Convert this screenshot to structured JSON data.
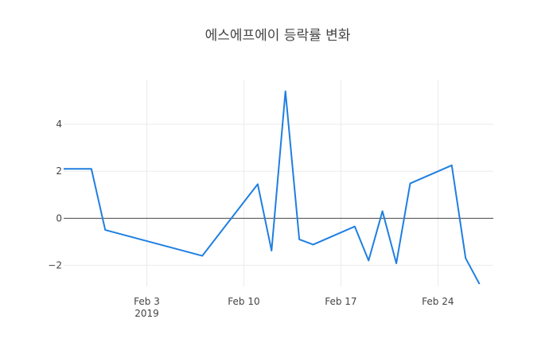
{
  "chart_data": {
    "type": "line",
    "title": "에스에프에이 등락률 변화",
    "xlabel": "",
    "ylabel": "",
    "x_year_label": "2019",
    "xlim": [
      "2019-01-28",
      "2019-02-28"
    ],
    "ylim": [
      -2.9,
      5.9
    ],
    "x_ticks": [
      {
        "date": "2019-02-03",
        "label": "Feb 3"
      },
      {
        "date": "2019-02-10",
        "label": "Feb 10"
      },
      {
        "date": "2019-02-17",
        "label": "Feb 17"
      },
      {
        "date": "2019-02-24",
        "label": "Feb 24"
      }
    ],
    "y_ticks": [
      {
        "value": 4,
        "label": "4"
      },
      {
        "value": 2,
        "label": "2"
      },
      {
        "value": 0,
        "label": "0"
      },
      {
        "value": -2,
        "label": "−2"
      }
    ],
    "grid": true,
    "zero_line": true,
    "series": [
      {
        "color": "#1f7fe0",
        "points": [
          {
            "x": "2019-01-28",
            "y": 2.1
          },
          {
            "x": "2019-01-30",
            "y": 2.1
          },
          {
            "x": "2019-01-31",
            "y": -0.5
          },
          {
            "x": "2019-02-07",
            "y": -1.6
          },
          {
            "x": "2019-02-11",
            "y": 1.45
          },
          {
            "x": "2019-02-12",
            "y": -1.38
          },
          {
            "x": "2019-02-13",
            "y": 5.4
          },
          {
            "x": "2019-02-14",
            "y": -0.9
          },
          {
            "x": "2019-02-15",
            "y": -1.12
          },
          {
            "x": "2019-02-18",
            "y": -0.35
          },
          {
            "x": "2019-02-19",
            "y": -1.8
          },
          {
            "x": "2019-02-20",
            "y": 0.3
          },
          {
            "x": "2019-02-21",
            "y": -1.92
          },
          {
            "x": "2019-02-22",
            "y": 1.48
          },
          {
            "x": "2019-02-25",
            "y": 2.25
          },
          {
            "x": "2019-02-26",
            "y": -1.7
          },
          {
            "x": "2019-02-27",
            "y": -2.8
          }
        ]
      }
    ]
  }
}
